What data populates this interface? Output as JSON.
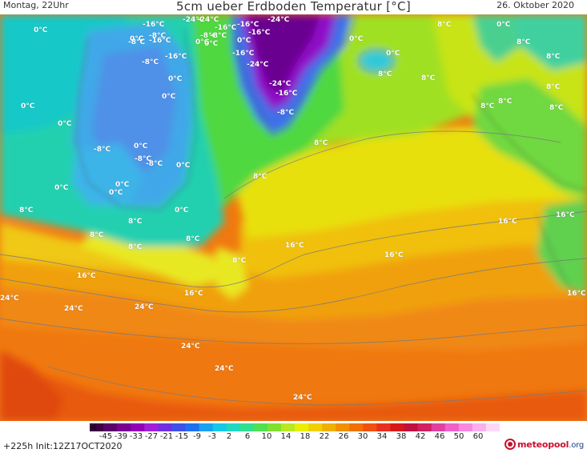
{
  "header": {
    "left": "Montag, 22Uhr",
    "title": "5cm ueber Erdboden Temperatur [°C]",
    "right": "26. Oktober 2020"
  },
  "map": {
    "labels": [
      "0°C",
      "-16°C",
      "-24°C",
      "-16°C",
      "-24°C",
      "-24°C",
      "8°C",
      "0°C",
      "0°C",
      "-8°C",
      "-8°C",
      "-16°C",
      "0°C",
      "-16°C",
      "-8°C",
      "8°C",
      "0°C",
      "0°C",
      "-16°C",
      "-8°C",
      "0°C",
      "0°C",
      "8°C",
      "-8°C",
      "-16°C",
      "-24°C",
      "0°C",
      "-16°C",
      "-24°C",
      "8°C",
      "8°C",
      "0°C",
      "8°C",
      "8°C",
      "0°C",
      "-8°C",
      "-16°C",
      "8°C",
      "8°C",
      "-8°C",
      "0°C",
      "-8°C",
      "0°C",
      "8°C",
      "0°C",
      "-8°C",
      "0°C",
      "8°C",
      "0°C",
      "0°C",
      "8°C",
      "16°C",
      "16°C",
      "0°C",
      "8°C",
      "8°C",
      "8°C",
      "16°C",
      "8°C",
      "16°C",
      "16°C",
      "8°C",
      "16°C",
      "24°C",
      "16°C",
      "24°C",
      "24°C",
      "24°C",
      "24°C",
      "24°C"
    ]
  },
  "legend": {
    "ticks": [
      "-45",
      "-39",
      "-33",
      "-27",
      "-21",
      "-15",
      "-9",
      "-3",
      "2",
      "6",
      "10",
      "14",
      "18",
      "22",
      "26",
      "30",
      "34",
      "38",
      "42",
      "46",
      "50",
      "60"
    ],
    "colors": [
      "#3d0040",
      "#5a006a",
      "#7a0092",
      "#9400b8",
      "#a020d8",
      "#7030e0",
      "#4050e8",
      "#2070f0",
      "#1aa0f0",
      "#14c8e8",
      "#20d8c0",
      "#30e090",
      "#50e050",
      "#80e030",
      "#b8e820",
      "#e8f000",
      "#f0d000",
      "#f0b000",
      "#f09000",
      "#f07000",
      "#f05010",
      "#e83020",
      "#d81818",
      "#c01040",
      "#d02060",
      "#e040a0",
      "#f060c8",
      "#f888e0",
      "#fab0ee",
      "#fcd8f6"
    ],
    "forecast": "+225h  Init:12Z17OCT2020",
    "logo_name": "meteopool",
    "logo_tld": ".org",
    "logo_icon": "meteopool-logo-icon"
  }
}
